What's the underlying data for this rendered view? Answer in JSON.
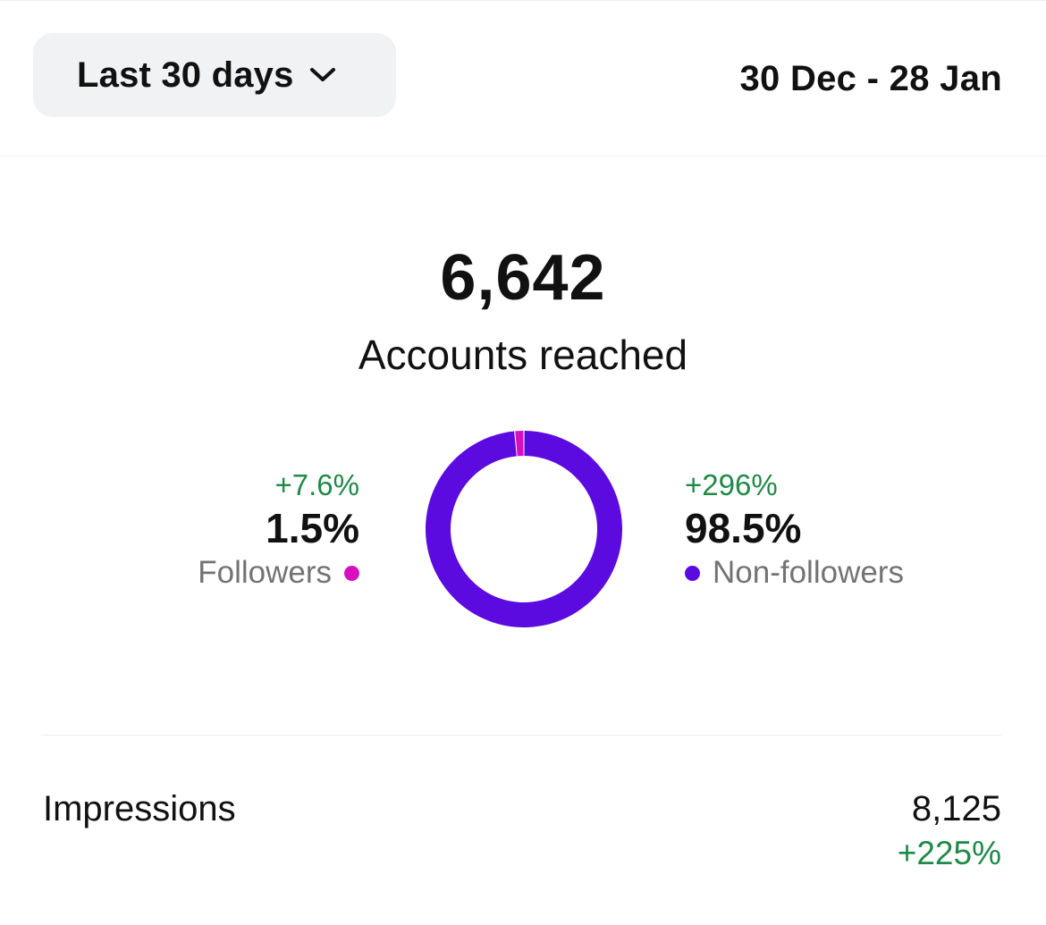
{
  "header": {
    "range_selector": "Last 30 days",
    "date_range": "30 Dec - 28 Jan"
  },
  "summary": {
    "value": "6,642",
    "label": "Accounts reached"
  },
  "breakdown": {
    "followers": {
      "change": "+7.6%",
      "percent": "1.5%",
      "label": "Followers",
      "color": "#d60fbf"
    },
    "non_followers": {
      "change": "+296%",
      "percent": "98.5%",
      "label": "Non-followers",
      "color": "#5b0ae0"
    }
  },
  "chart_data": {
    "type": "pie",
    "categories": [
      "Followers",
      "Non-followers"
    ],
    "values": [
      1.5,
      98.5
    ],
    "colors": [
      "#d60fbf",
      "#5b0ae0"
    ],
    "title": "",
    "style": "donut"
  },
  "metrics": {
    "impressions": {
      "label": "Impressions",
      "value": "8,125",
      "change": "+225%"
    }
  },
  "icons": {
    "range_chevron": "chevron-down-icon"
  }
}
